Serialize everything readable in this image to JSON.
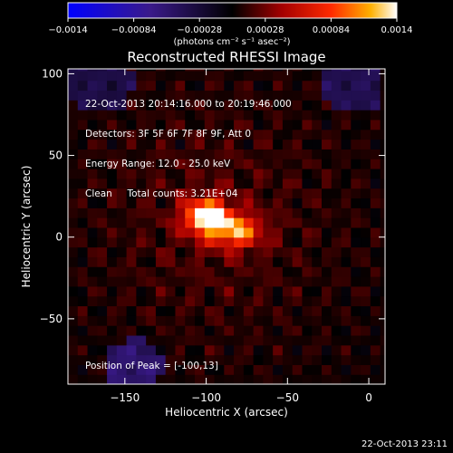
{
  "chart_data": {
    "type": "heatmap",
    "title": "Reconstructed RHESSI Image",
    "xlabel": "Heliocentric X (arcsec)",
    "ylabel": "Heliocentric Y (arcsec)",
    "xlim": [
      -185,
      10
    ],
    "ylim": [
      -90,
      103
    ],
    "x_ticks": [
      -150,
      -100,
      -50,
      0
    ],
    "x_tick_labels": [
      "−150",
      "−100",
      "−50",
      "0"
    ],
    "y_ticks": [
      -50,
      0,
      50,
      100
    ],
    "y_tick_labels": [
      "−50",
      "0",
      "50",
      "100"
    ],
    "colorbar": {
      "range": [
        -0.0014,
        0.0014
      ],
      "ticks": [
        -0.0014,
        -0.00084,
        -0.00028,
        0.00028,
        0.00084,
        0.0014
      ],
      "tick_labels": [
        "−0.0014",
        "−0.00084",
        "−0.00028",
        "0.00028",
        "0.00084",
        "0.0014"
      ],
      "unit_label": "(photons cm⁻² s⁻¹ asec⁻²)"
    },
    "annotations": [
      "22-Oct-2013 20:14:16.000 to 20:19:46.000",
      "Detectors: 3F 5F 6F 7F 8F 9F, Att 0",
      "Energy Range: 12.0 - 25.0 keV",
      "Clean     Total counts: 3.21E+04"
    ],
    "peak_label": "Position of Peak = [-100,13]",
    "peak": {
      "x": -100,
      "y": 13,
      "value": 0.0014
    },
    "sources": [
      {
        "x": -100,
        "y": 13,
        "sigma_x": 9,
        "sigma_y": 7,
        "amplitude": 0.0014
      },
      {
        "x": -82,
        "y": 4,
        "sigma_x": 11,
        "sigma_y": 7,
        "amplitude": 0.00095
      }
    ],
    "grid": false,
    "colormap": "hot-with-blue-negatives"
  },
  "footer_timestamp": "22-Oct-2013 23:11"
}
